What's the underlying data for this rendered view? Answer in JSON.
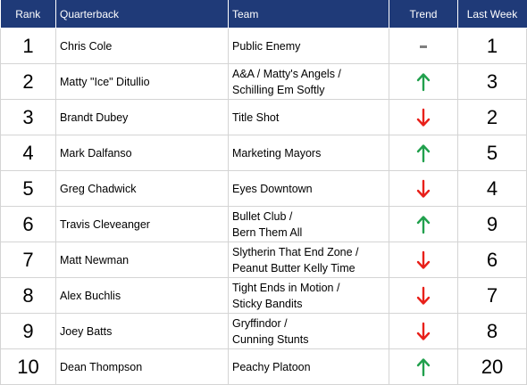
{
  "table": {
    "headers": {
      "rank": "Rank",
      "quarterback": "Quarterback",
      "team": "Team",
      "trend": "Trend",
      "last_week": "Last Week"
    },
    "rows": [
      {
        "rank": "1",
        "quarterback": "Chris Cole",
        "team": [
          "Public Enemy"
        ],
        "trend": "same",
        "last_week": "1"
      },
      {
        "rank": "2",
        "quarterback": "Matty \"Ice\" Ditullio",
        "team": [
          "A&A / Matty's Angels /",
          "Schilling Em Softly"
        ],
        "trend": "up",
        "last_week": "3"
      },
      {
        "rank": "3",
        "quarterback": "Brandt Dubey",
        "team": [
          "Title Shot"
        ],
        "trend": "down",
        "last_week": "2"
      },
      {
        "rank": "4",
        "quarterback": "Mark Dalfanso",
        "team": [
          "Marketing Mayors"
        ],
        "trend": "up",
        "last_week": "5"
      },
      {
        "rank": "5",
        "quarterback": "Greg Chadwick",
        "team": [
          "Eyes Downtown"
        ],
        "trend": "down",
        "last_week": "4"
      },
      {
        "rank": "6",
        "quarterback": "Travis Cleveanger",
        "team": [
          "Bullet Club /",
          "Bern Them All"
        ],
        "trend": "up",
        "last_week": "9"
      },
      {
        "rank": "7",
        "quarterback": "Matt Newman",
        "team": [
          "Slytherin That End Zone /",
          "Peanut Butter Kelly Time"
        ],
        "trend": "down",
        "last_week": "6"
      },
      {
        "rank": "8",
        "quarterback": "Alex Buchlis",
        "team": [
          "Tight Ends in Motion /",
          "Sticky Bandits"
        ],
        "trend": "down",
        "last_week": "7"
      },
      {
        "rank": "9",
        "quarterback": "Joey Batts",
        "team": [
          "Gryffindor /",
          "Cunning Stunts"
        ],
        "trend": "down",
        "last_week": "8"
      },
      {
        "rank": "10",
        "quarterback": "Dean Thompson",
        "team": [
          "Peachy Platoon"
        ],
        "trend": "up",
        "last_week": "20"
      }
    ]
  },
  "colors": {
    "header_bg": "#1f3a78",
    "up": "#21a04d",
    "down": "#e8201a",
    "same": "#7f7f7f"
  },
  "icons": {
    "up": "arrow-up-icon",
    "down": "arrow-down-icon",
    "same": "dash-icon"
  }
}
